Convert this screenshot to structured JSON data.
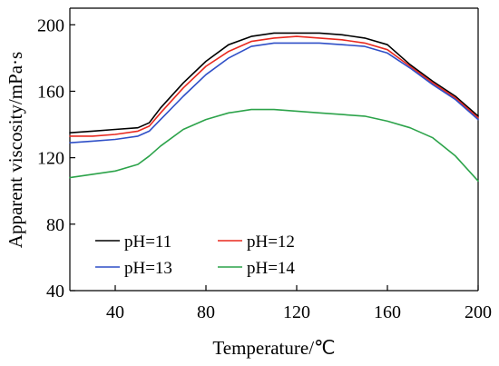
{
  "chart_data": {
    "type": "line",
    "xlabel": "Temperature/℃",
    "ylabel": "Apparent viscosity/mPa·s",
    "xlim": [
      20,
      200
    ],
    "ylim": [
      40,
      210
    ],
    "xticks": [
      40,
      80,
      120,
      160,
      200
    ],
    "yticks": [
      40,
      80,
      120,
      160,
      200
    ],
    "grid": false,
    "legend_position": "bottom-left",
    "x": [
      20,
      30,
      40,
      50,
      55,
      60,
      70,
      80,
      90,
      100,
      110,
      120,
      130,
      140,
      150,
      160,
      170,
      180,
      190,
      200
    ],
    "series": [
      {
        "name": "pH=11",
        "color": "#000000",
        "values": [
          135,
          136,
          137,
          138,
          141,
          150,
          165,
          178,
          188,
          193,
          195,
          195,
          195,
          194,
          192,
          188,
          176,
          166,
          157,
          145
        ]
      },
      {
        "name": "pH=12",
        "color": "#e8291f",
        "values": [
          133,
          133,
          134,
          136,
          139,
          147,
          162,
          175,
          184,
          190,
          192,
          193,
          192,
          191,
          189,
          185,
          175,
          165,
          156,
          144
        ]
      },
      {
        "name": "pH=13",
        "color": "#2f4fc7",
        "values": [
          129,
          130,
          131,
          133,
          136,
          143,
          157,
          170,
          180,
          187,
          189,
          189,
          189,
          188,
          187,
          183,
          174,
          164,
          155,
          143
        ]
      },
      {
        "name": "pH=14",
        "color": "#2ca34a",
        "values": [
          108,
          110,
          112,
          116,
          121,
          127,
          137,
          143,
          147,
          149,
          149,
          148,
          147,
          146,
          145,
          142,
          138,
          132,
          121,
          106
        ]
      }
    ]
  }
}
